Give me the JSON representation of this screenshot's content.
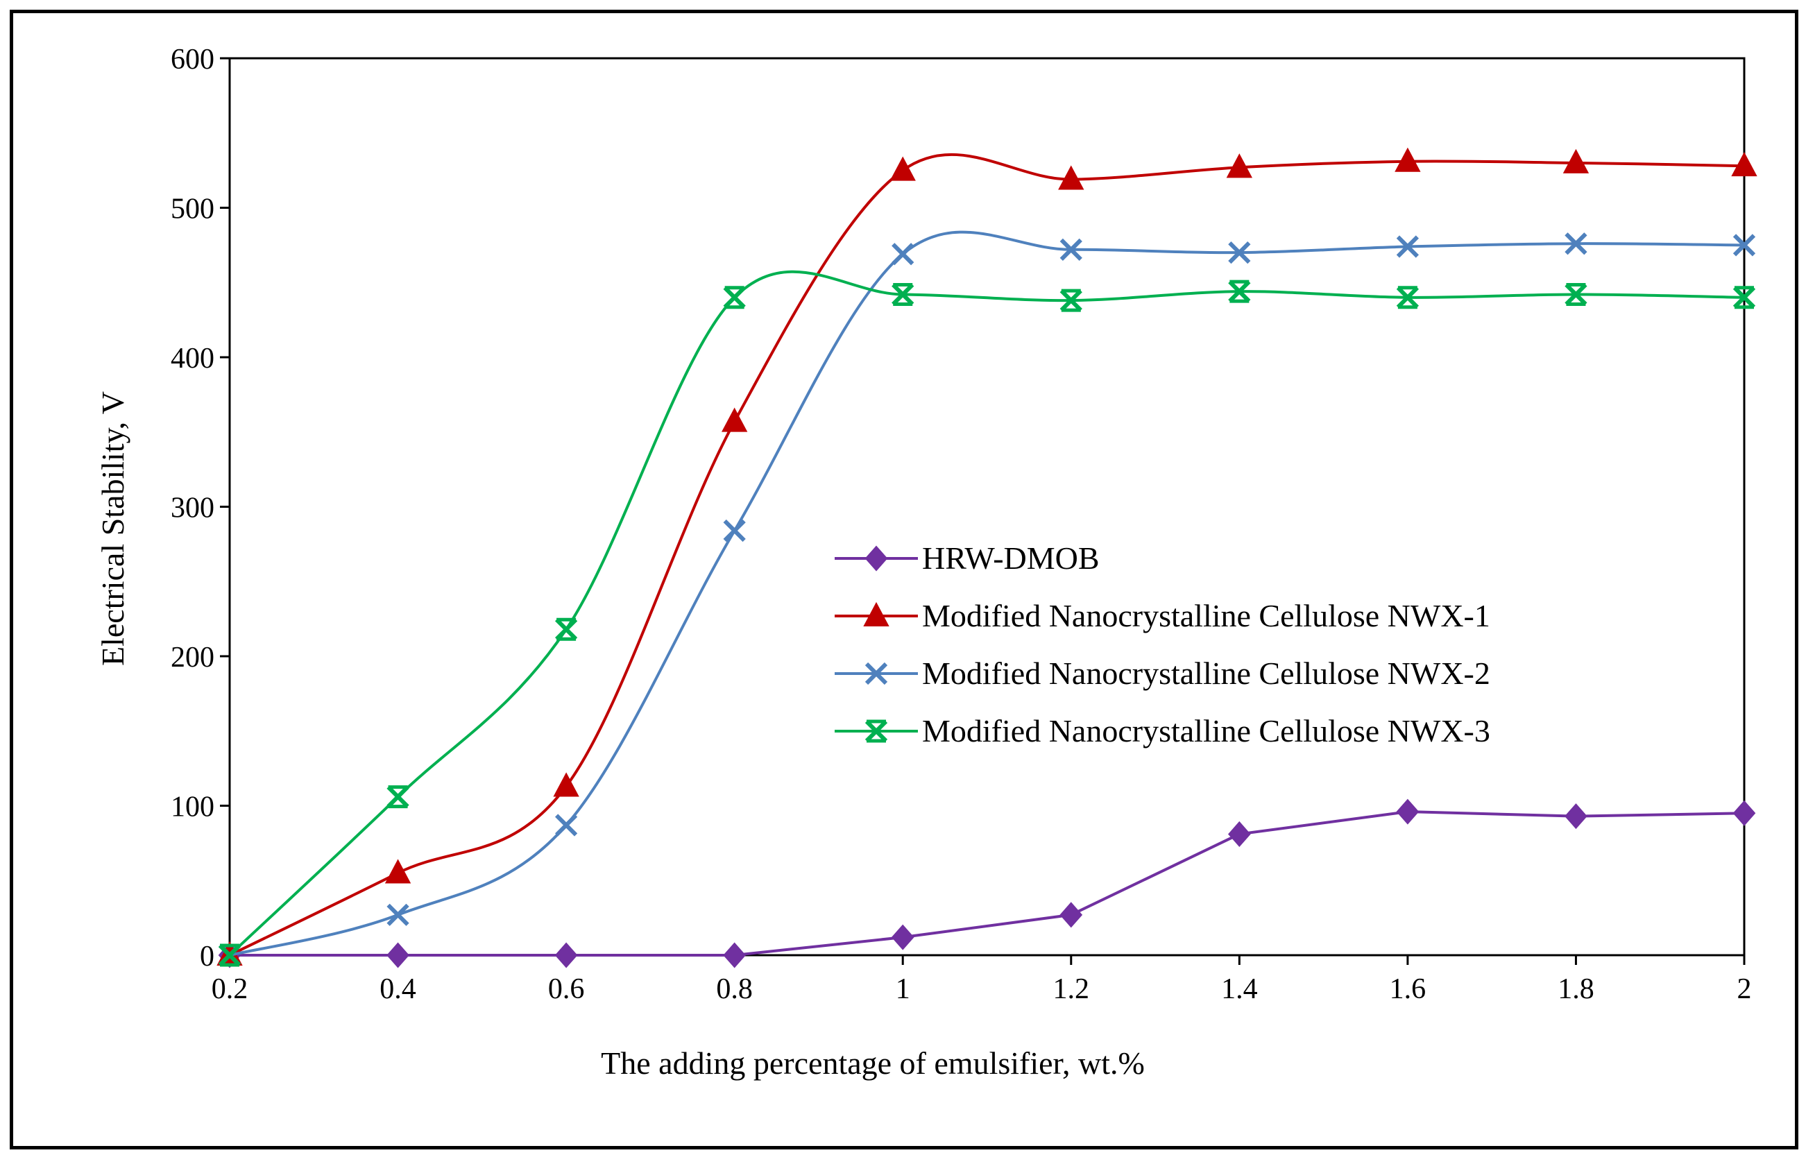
{
  "chart_data": {
    "type": "line",
    "title": "",
    "xlabel": "The adding percentage of emulsifier,  wt.%",
    "ylabel": "Electrical Stability, V",
    "x": [
      0.2,
      0.4,
      0.6,
      0.8,
      1.0,
      1.2,
      1.4,
      1.6,
      1.8,
      2.0
    ],
    "x_tick_labels": [
      "0.2",
      "0.4",
      "0.6",
      "0.8",
      "1",
      "1.2",
      "1.4",
      "1.6",
      "1.8",
      "2"
    ],
    "xlim": [
      0.2,
      2.0
    ],
    "ylim": [
      0,
      600
    ],
    "y_ticks": [
      0,
      100,
      200,
      300,
      400,
      500,
      600
    ],
    "y_tick_labels": [
      "0",
      "100",
      "200",
      "300",
      "400",
      "500",
      "600"
    ],
    "grid": false,
    "legend_position": "center-right",
    "series": [
      {
        "name": "HRW-DMOB",
        "color": "#7030A0",
        "marker": "diamond",
        "smooth": false,
        "values": [
          0,
          0,
          0,
          0,
          12,
          27,
          81,
          96,
          93,
          95
        ]
      },
      {
        "name": "Modified Nanocrystalline Cellulose NWX-1",
        "color": "#C00000",
        "marker": "triangle",
        "smooth": true,
        "values": [
          0,
          55,
          113,
          357,
          525,
          519,
          527,
          531,
          530,
          528
        ]
      },
      {
        "name": "Modified Nanocrystalline Cellulose NWX-2",
        "color": "#4F81BD",
        "marker": "x",
        "smooth": true,
        "values": [
          0,
          27,
          87,
          284,
          469,
          472,
          470,
          474,
          476,
          475
        ]
      },
      {
        "name": "Modified Nanocrystalline Cellulose NWX-3",
        "color": "#00B050",
        "marker": "star",
        "smooth": true,
        "values": [
          0,
          106,
          218,
          440,
          442,
          438,
          444,
          440,
          442,
          440
        ]
      }
    ]
  }
}
